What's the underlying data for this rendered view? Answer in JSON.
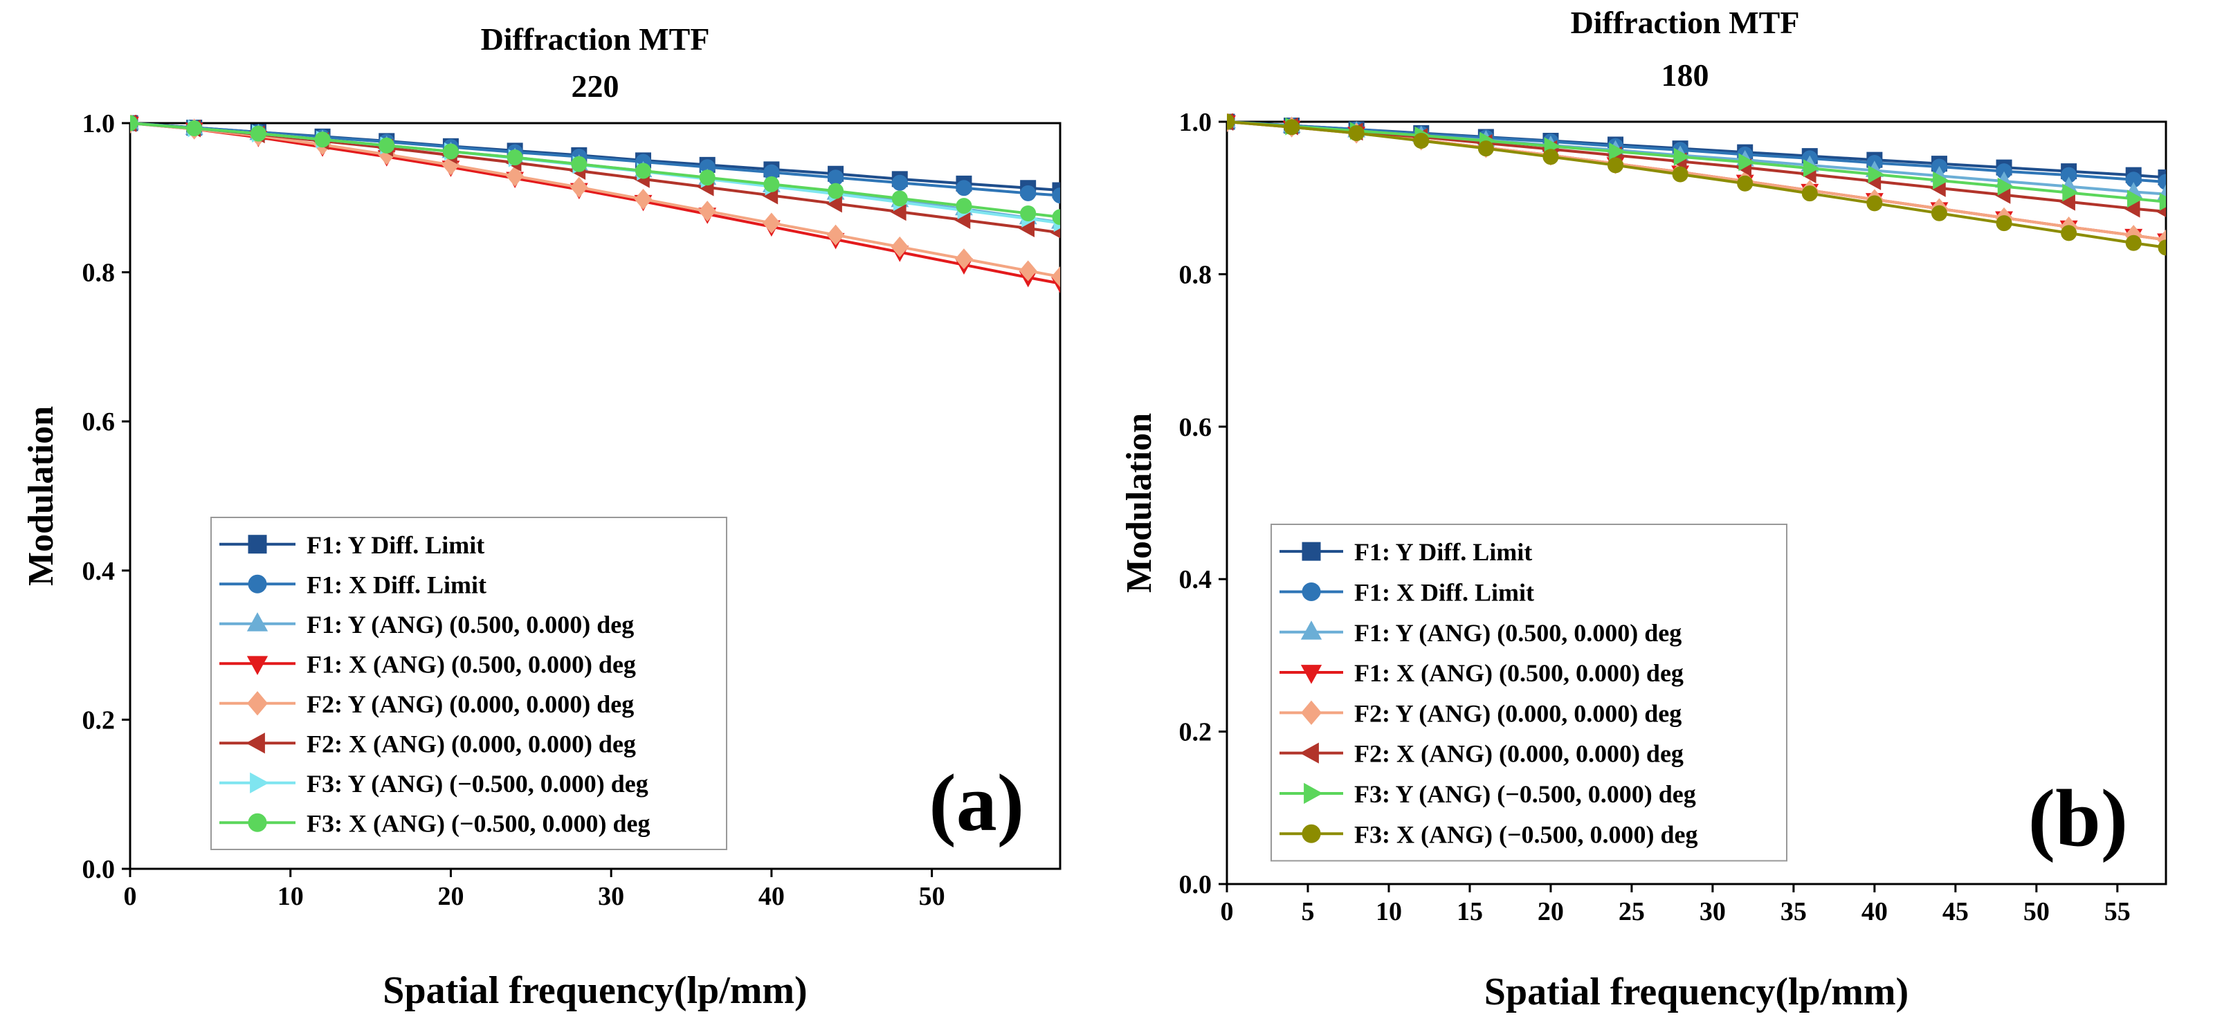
{
  "chart_data": [
    {
      "type": "line",
      "panel_label": "(a)",
      "title": "Diffraction MTF",
      "subtitle": "220",
      "xlabel": "Spatial frequency(lp/mm)",
      "ylabel": "Modulation",
      "xlim": [
        0,
        58
      ],
      "ylim": [
        0.0,
        1.0
      ],
      "xticks": [
        0,
        10,
        20,
        30,
        40,
        50
      ],
      "yticks": [
        0.0,
        0.2,
        0.4,
        0.6,
        0.8,
        1.0
      ],
      "grid": false,
      "legend_position": "bottom-center",
      "x": [
        0,
        4,
        8,
        12,
        16,
        20,
        24,
        28,
        32,
        36,
        40,
        44,
        48,
        52,
        56,
        58
      ],
      "series": [
        {
          "name": "F1: Y Diff. Limit",
          "color": "#1f4e8c",
          "marker": "square",
          "values": [
            1.0,
            0.994,
            0.988,
            0.982,
            0.976,
            0.969,
            0.963,
            0.957,
            0.95,
            0.944,
            0.938,
            0.932,
            0.925,
            0.919,
            0.913,
            0.91
          ]
        },
        {
          "name": "F1: X Diff. Limit",
          "color": "#2e75b6",
          "marker": "circle",
          "values": [
            1.0,
            0.994,
            0.988,
            0.981,
            0.975,
            0.968,
            0.961,
            0.955,
            0.948,
            0.941,
            0.934,
            0.927,
            0.92,
            0.913,
            0.906,
            0.903
          ]
        },
        {
          "name": "F1: Y (ANG) (0.500, 0.000) deg",
          "color": "#6baed6",
          "marker": "triangle-up",
          "values": [
            1.0,
            0.993,
            0.986,
            0.978,
            0.97,
            0.962,
            0.954,
            0.945,
            0.936,
            0.926,
            0.916,
            0.906,
            0.896,
            0.885,
            0.873,
            0.867
          ]
        },
        {
          "name": "F1: X (ANG) (0.500, 0.000) deg",
          "color": "#e31a1c",
          "marker": "triangle-down",
          "values": [
            1.0,
            0.992,
            0.981,
            0.968,
            0.955,
            0.941,
            0.926,
            0.911,
            0.895,
            0.878,
            0.861,
            0.844,
            0.827,
            0.81,
            0.793,
            0.785
          ]
        },
        {
          "name": "F2: Y (ANG) (0.000, 0.000) deg",
          "color": "#f4a582",
          "marker": "diamond",
          "values": [
            1.0,
            0.992,
            0.983,
            0.971,
            0.958,
            0.944,
            0.929,
            0.914,
            0.898,
            0.882,
            0.866,
            0.85,
            0.834,
            0.818,
            0.802,
            0.794
          ]
        },
        {
          "name": "F2: X (ANG) (0.000, 0.000) deg",
          "color": "#b2342a",
          "marker": "triangle-left",
          "values": [
            1.0,
            0.993,
            0.985,
            0.976,
            0.967,
            0.957,
            0.947,
            0.936,
            0.925,
            0.914,
            0.903,
            0.892,
            0.881,
            0.87,
            0.859,
            0.853
          ]
        },
        {
          "name": "F3: Y (ANG) (−0.500, 0.000) deg",
          "color": "#7fe5f0",
          "marker": "triangle-right",
          "values": [
            1.0,
            0.993,
            0.986,
            0.978,
            0.97,
            0.962,
            0.953,
            0.944,
            0.935,
            0.925,
            0.915,
            0.905,
            0.894,
            0.883,
            0.872,
            0.866
          ]
        },
        {
          "name": "F3: X (ANG) (−0.500, 0.000) deg",
          "color": "#5bd65b",
          "marker": "circle",
          "values": [
            1.0,
            0.993,
            0.986,
            0.978,
            0.97,
            0.962,
            0.954,
            0.945,
            0.936,
            0.927,
            0.918,
            0.909,
            0.899,
            0.889,
            0.879,
            0.874
          ]
        }
      ]
    },
    {
      "type": "line",
      "panel_label": "(b)",
      "title": "Diffraction MTF",
      "subtitle": "180",
      "xlabel": "Spatial frequency(lp/mm)",
      "ylabel": "Modulation",
      "xlim": [
        0,
        58
      ],
      "ylim": [
        0.0,
        1.0
      ],
      "xticks": [
        0,
        5,
        10,
        15,
        20,
        25,
        30,
        35,
        40,
        45,
        50,
        55
      ],
      "yticks": [
        0.0,
        0.2,
        0.4,
        0.6,
        0.8,
        1.0
      ],
      "grid": false,
      "legend_position": "bottom-center",
      "x": [
        0,
        4,
        8,
        12,
        16,
        20,
        24,
        28,
        32,
        36,
        40,
        44,
        48,
        52,
        56,
        58
      ],
      "series": [
        {
          "name": "F1: Y Diff. Limit",
          "color": "#1f4e8c",
          "marker": "square",
          "values": [
            1.0,
            0.995,
            0.99,
            0.985,
            0.98,
            0.975,
            0.97,
            0.965,
            0.96,
            0.955,
            0.95,
            0.945,
            0.94,
            0.935,
            0.93,
            0.927
          ]
        },
        {
          "name": "F1: X Diff. Limit",
          "color": "#2e75b6",
          "marker": "circle",
          "values": [
            1.0,
            0.995,
            0.99,
            0.984,
            0.979,
            0.974,
            0.968,
            0.963,
            0.957,
            0.952,
            0.946,
            0.941,
            0.935,
            0.93,
            0.924,
            0.921
          ]
        },
        {
          "name": "F1: Y (ANG) (0.500, 0.000) deg",
          "color": "#6baed6",
          "marker": "triangle-up",
          "values": [
            1.0,
            0.994,
            0.988,
            0.982,
            0.976,
            0.969,
            0.963,
            0.956,
            0.95,
            0.943,
            0.936,
            0.929,
            0.922,
            0.915,
            0.908,
            0.905
          ]
        },
        {
          "name": "F1: X (ANG) (0.500, 0.000) deg",
          "color": "#e31a1c",
          "marker": "triangle-down",
          "values": [
            1.0,
            0.993,
            0.985,
            0.976,
            0.966,
            0.956,
            0.945,
            0.934,
            0.922,
            0.91,
            0.898,
            0.886,
            0.874,
            0.862,
            0.851,
            0.845
          ]
        },
        {
          "name": "F2: Y (ANG) (0.000, 0.000) deg",
          "color": "#f4a582",
          "marker": "diamond",
          "values": [
            1.0,
            0.993,
            0.985,
            0.976,
            0.966,
            0.956,
            0.945,
            0.934,
            0.922,
            0.91,
            0.898,
            0.886,
            0.874,
            0.862,
            0.851,
            0.845
          ]
        },
        {
          "name": "F2: X (ANG) (0.000, 0.000) deg",
          "color": "#b2342a",
          "marker": "triangle-left",
          "values": [
            1.0,
            0.994,
            0.987,
            0.98,
            0.972,
            0.964,
            0.956,
            0.948,
            0.94,
            0.931,
            0.922,
            0.913,
            0.904,
            0.895,
            0.886,
            0.882
          ]
        },
        {
          "name": "F3: Y (ANG) (−0.500, 0.000) deg",
          "color": "#5bd65b",
          "marker": "triangle-right",
          "values": [
            1.0,
            0.994,
            0.988,
            0.982,
            0.975,
            0.968,
            0.961,
            0.954,
            0.947,
            0.939,
            0.931,
            0.923,
            0.915,
            0.907,
            0.899,
            0.895
          ]
        },
        {
          "name": "F3: X (ANG) (−0.500, 0.000) deg",
          "color": "#8c8c00",
          "marker": "circle",
          "values": [
            1.0,
            0.993,
            0.985,
            0.975,
            0.965,
            0.954,
            0.943,
            0.931,
            0.919,
            0.906,
            0.893,
            0.88,
            0.867,
            0.854,
            0.841,
            0.835
          ]
        }
      ]
    }
  ]
}
